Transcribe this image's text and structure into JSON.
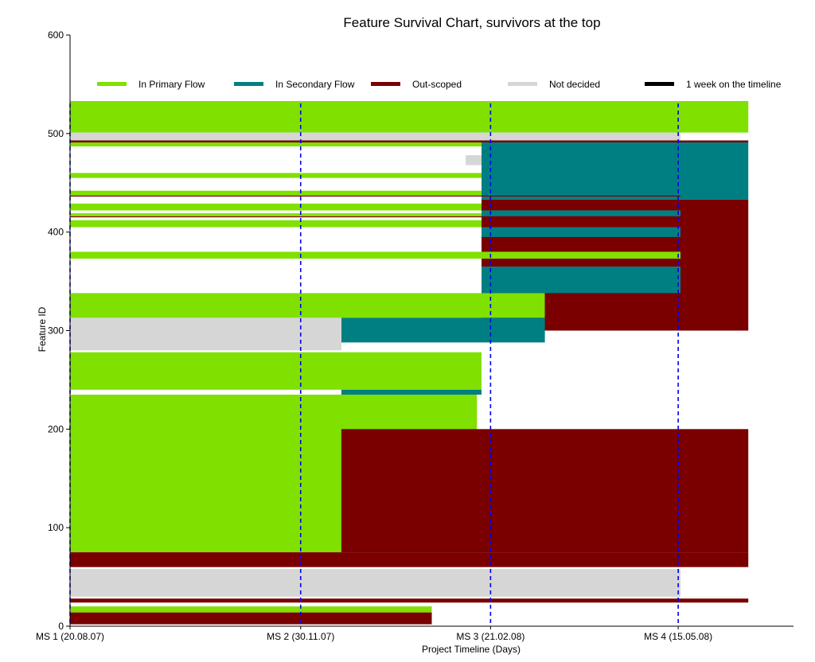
{
  "chart_data": {
    "type": "bar",
    "title": "Feature Survival Chart, survivors at the top",
    "xlabel": "Project Timeline (Days)",
    "ylabel": "Feature ID",
    "ylim": [
      0,
      600
    ],
    "y_ticks": [
      0,
      100,
      200,
      300,
      400,
      500,
      600
    ],
    "x_range": [
      0,
      320
    ],
    "x_ticks": [
      {
        "x": 0,
        "label": "MS 1 (20.08.07)"
      },
      {
        "x": 102,
        "label": "MS 2 (30.11.07)"
      },
      {
        "x": 186,
        "label": "MS 3 (21.02.08)"
      },
      {
        "x": 269,
        "label": "MS 4 (15.05.08)"
      }
    ],
    "milestones": [
      0,
      102,
      186,
      269
    ],
    "legend_position": "top",
    "grid": false,
    "series": [
      {
        "name": "In Primary Flow",
        "color": "#80e000"
      },
      {
        "name": "In Secondary Flow",
        "color": "#007f82"
      },
      {
        "name": "Out-scoped",
        "color": "#7a0000"
      },
      {
        "name": "Not decided",
        "color": "#d6d6d6"
      },
      {
        "name": "1 week on the timeline",
        "color": "#000000"
      }
    ],
    "bands": [
      {
        "y0": 533,
        "y1": 501,
        "x0": 0,
        "x1": 300,
        "state": "In Primary Flow"
      },
      {
        "y0": 501,
        "y1": 493,
        "x0": 0,
        "x1": 270,
        "state": "Not decided"
      },
      {
        "y0": 493,
        "y1": 491,
        "x0": 0,
        "x1": 300,
        "state": "Out-scoped"
      },
      {
        "y0": 491,
        "y1": 487,
        "x0": 0,
        "x1": 182,
        "state": "In Primary Flow"
      },
      {
        "y0": 491,
        "y1": 433,
        "x0": 182,
        "x1": 300,
        "state": "In Secondary Flow"
      },
      {
        "y0": 478,
        "y1": 468,
        "x0": 175,
        "x1": 182,
        "state": "Not decided"
      },
      {
        "y0": 460,
        "y1": 455,
        "x0": 0,
        "x1": 182,
        "state": "In Primary Flow"
      },
      {
        "y0": 442,
        "y1": 437,
        "x0": 0,
        "x1": 182,
        "state": "In Primary Flow"
      },
      {
        "y0": 437,
        "y1": 436,
        "x0": 0,
        "x1": 270,
        "state": "Out-scoped"
      },
      {
        "y0": 433,
        "y1": 300,
        "x0": 182,
        "x1": 300,
        "state": "Out-scoped"
      },
      {
        "y0": 429,
        "y1": 422,
        "x0": 0,
        "x1": 182,
        "state": "In Primary Flow"
      },
      {
        "y0": 422,
        "y1": 416,
        "x0": 182,
        "x1": 270,
        "state": "In Secondary Flow"
      },
      {
        "y0": 419,
        "y1": 416,
        "x0": 0,
        "x1": 182,
        "state": "In Primary Flow"
      },
      {
        "y0": 416,
        "y1": 415,
        "x0": 0,
        "x1": 270,
        "state": "Out-scoped"
      },
      {
        "y0": 412,
        "y1": 405,
        "x0": 0,
        "x1": 182,
        "state": "In Primary Flow"
      },
      {
        "y0": 405,
        "y1": 395,
        "x0": 182,
        "x1": 270,
        "state": "In Secondary Flow"
      },
      {
        "y0": 380,
        "y1": 373,
        "x0": 0,
        "x1": 270,
        "state": "In Primary Flow"
      },
      {
        "y0": 365,
        "y1": 338,
        "x0": 182,
        "x1": 270,
        "state": "In Secondary Flow"
      },
      {
        "y0": 338,
        "y1": 313,
        "x0": 0,
        "x1": 210,
        "state": "In Primary Flow"
      },
      {
        "y0": 313,
        "y1": 288,
        "x0": 120,
        "x1": 210,
        "state": "In Secondary Flow"
      },
      {
        "y0": 313,
        "y1": 280,
        "x0": 0,
        "x1": 120,
        "state": "Not decided"
      },
      {
        "y0": 278,
        "y1": 240,
        "x0": 0,
        "x1": 182,
        "state": "In Primary Flow"
      },
      {
        "y0": 240,
        "y1": 235,
        "x0": 120,
        "x1": 182,
        "state": "In Secondary Flow"
      },
      {
        "y0": 235,
        "y1": 75,
        "x0": 0,
        "x1": 180,
        "state": "In Primary Flow"
      },
      {
        "y0": 200,
        "y1": 75,
        "x0": 120,
        "x1": 300,
        "state": "Out-scoped"
      },
      {
        "y0": 75,
        "y1": 60,
        "x0": 0,
        "x1": 300,
        "state": "Out-scoped"
      },
      {
        "y0": 58,
        "y1": 30,
        "x0": 0,
        "x1": 270,
        "state": "Not decided"
      },
      {
        "y0": 28,
        "y1": 24,
        "x0": 0,
        "x1": 300,
        "state": "Out-scoped"
      },
      {
        "y0": 20,
        "y1": 14,
        "x0": 0,
        "x1": 160,
        "state": "In Primary Flow"
      },
      {
        "y0": 14,
        "y1": 2,
        "x0": 0,
        "x1": 160,
        "state": "Out-scoped"
      }
    ]
  }
}
